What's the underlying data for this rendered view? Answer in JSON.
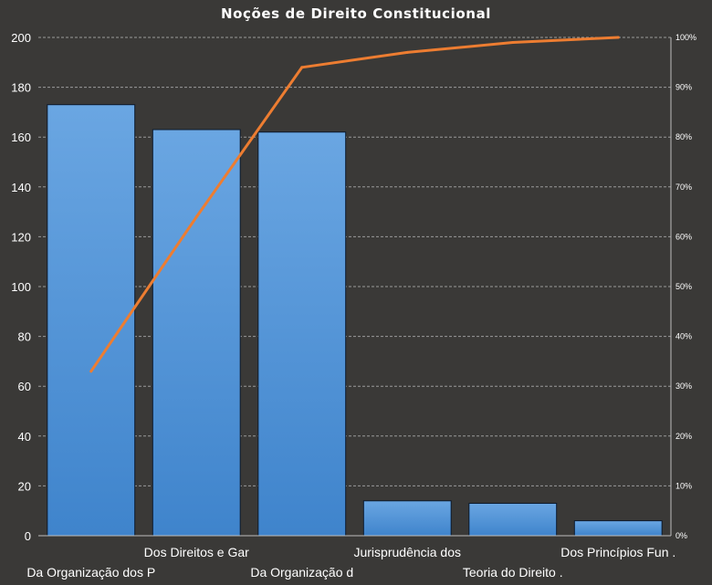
{
  "chart_data": {
    "type": "bar",
    "title": "Noções de Direito  Constitucional",
    "categories": [
      "Da Organização dos P",
      "Dos Direitos e Gar",
      "Da Organização d",
      "Jurisprudência dos",
      "Teoria do Direito .",
      "Dos Princípios Fun ."
    ],
    "series": [
      {
        "values": [
          173,
          163,
          162,
          14,
          13,
          6
        ]
      }
    ],
    "cumulative_percent": [
      33,
      64,
      94,
      97,
      99,
      100
    ],
    "ylim": [
      0,
      200
    ],
    "y_ticks": [
      "0",
      "20",
      "40",
      "60",
      "80",
      "100",
      "120",
      "140",
      "160",
      "180",
      "200"
    ],
    "y2lim": [
      0,
      100
    ],
    "y2_ticks": [
      "0%",
      "10%",
      "20%",
      "30%",
      "40%",
      "50%",
      "60%",
      "70%",
      "80%",
      "90%",
      "100%"
    ],
    "grid": true,
    "colors": {
      "background": "#3a3937",
      "bar_top": "#6aa6e2",
      "bar_bottom": "#3f84cc",
      "bar_border": "#0c1a2e",
      "line": "#ed7d31",
      "grid": "#9a9a9a"
    }
  }
}
